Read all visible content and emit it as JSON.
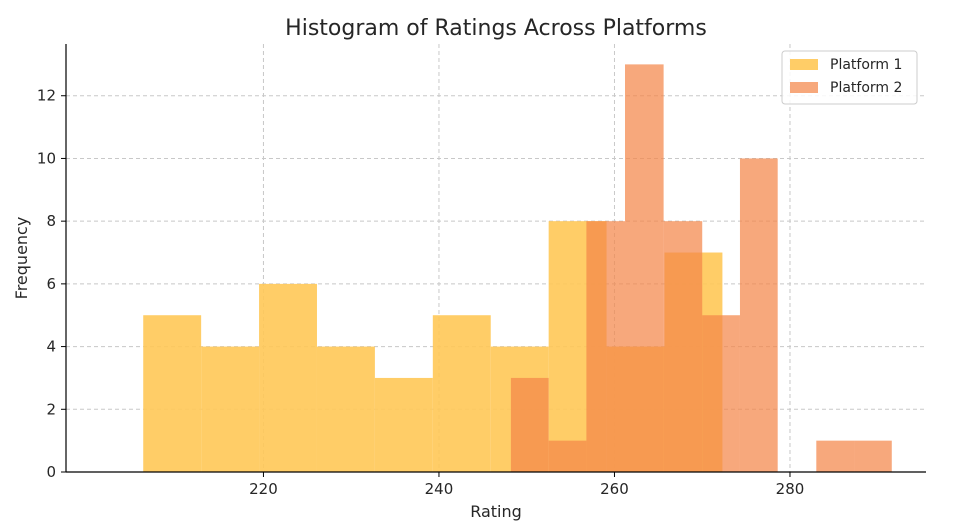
{
  "chart_data": {
    "type": "histogram",
    "title": "Histogram of Ratings Across Platforms",
    "xlabel": "Rating",
    "ylabel": "Frequency",
    "xlim": [
      197.5,
      295.5
    ],
    "ylim": [
      0,
      13.65
    ],
    "xticks": [
      220,
      240,
      260,
      280
    ],
    "yticks": [
      0,
      2,
      4,
      6,
      8,
      10,
      12
    ],
    "grid": true,
    "legend_position": "top-right",
    "series": [
      {
        "name": "Platform 1",
        "color": "#FFC857",
        "opacity": 0.9,
        "bin_edges": [
          206.3,
          212.9,
          219.5,
          226.1,
          232.7,
          239.3,
          245.9,
          252.5,
          259.1,
          265.7,
          272.3
        ],
        "counts": [
          5,
          4,
          6,
          4,
          3,
          5,
          4,
          8,
          4,
          7
        ]
      },
      {
        "name": "Platform 2",
        "color": "#F4874A",
        "opacity": 0.72,
        "bin_edges": [
          248.2,
          252.5,
          256.8,
          261.2,
          265.6,
          270.0,
          274.3,
          278.6,
          283.0,
          287.3,
          291.6
        ],
        "counts": [
          3,
          1,
          8,
          13,
          8,
          5,
          10,
          0,
          1,
          1
        ]
      }
    ]
  }
}
